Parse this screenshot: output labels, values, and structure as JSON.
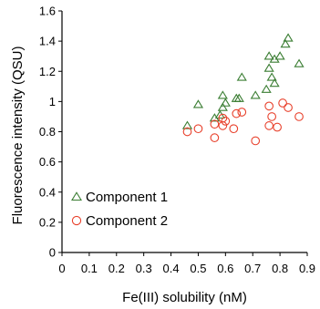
{
  "chart_data": {
    "type": "scatter",
    "xlabel": "Fe(III) solubility (nM)",
    "ylabel": "Fluorescence intensity (QSU)",
    "xlim": [
      0,
      0.9
    ],
    "ylim": [
      0,
      1.6
    ],
    "x_ticks": [
      "0",
      "0.1",
      "0.2",
      "0.3",
      "0.4",
      "0.5",
      "0.6",
      "0.7",
      "0.8",
      "0.9"
    ],
    "y_ticks": [
      "0",
      "0.2",
      "0.4",
      "0.6",
      "0.8",
      "1",
      "1.2",
      "1.4",
      "1.6"
    ],
    "legend_position": "bottom-left",
    "series": [
      {
        "name": "Component 1",
        "marker": "triangle",
        "color": "#3a7d32",
        "points": [
          [
            0.46,
            0.84
          ],
          [
            0.5,
            0.98
          ],
          [
            0.56,
            0.89
          ],
          [
            0.58,
            0.91
          ],
          [
            0.59,
            1.04
          ],
          [
            0.59,
            0.96
          ],
          [
            0.6,
            0.99
          ],
          [
            0.64,
            1.02
          ],
          [
            0.65,
            1.02
          ],
          [
            0.66,
            1.16
          ],
          [
            0.71,
            1.04
          ],
          [
            0.75,
            1.08
          ],
          [
            0.76,
            1.22
          ],
          [
            0.76,
            1.3
          ],
          [
            0.77,
            1.16
          ],
          [
            0.78,
            1.12
          ],
          [
            0.78,
            1.28
          ],
          [
            0.8,
            1.3
          ],
          [
            0.82,
            1.38
          ],
          [
            0.83,
            1.42
          ],
          [
            0.87,
            1.25
          ]
        ]
      },
      {
        "name": "Component 2",
        "marker": "circle",
        "color": "#e8412c",
        "points": [
          [
            0.46,
            0.8
          ],
          [
            0.5,
            0.82
          ],
          [
            0.56,
            0.76
          ],
          [
            0.56,
            0.85
          ],
          [
            0.59,
            0.84
          ],
          [
            0.59,
            0.89
          ],
          [
            0.6,
            0.87
          ],
          [
            0.63,
            0.82
          ],
          [
            0.64,
            0.92
          ],
          [
            0.66,
            0.93
          ],
          [
            0.71,
            0.74
          ],
          [
            0.76,
            0.84
          ],
          [
            0.76,
            0.97
          ],
          [
            0.77,
            0.9
          ],
          [
            0.79,
            0.83
          ],
          [
            0.81,
            0.99
          ],
          [
            0.83,
            0.96
          ],
          [
            0.87,
            0.9
          ]
        ]
      }
    ]
  }
}
